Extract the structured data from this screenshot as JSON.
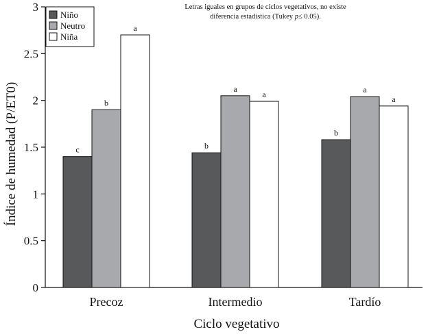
{
  "chart_data": {
    "type": "bar",
    "title": "",
    "xlabel": "Ciclo vegetativo",
    "ylabel": "Índice de humedad (P/ET0)",
    "ylim": [
      0,
      3
    ],
    "yticks": [
      0,
      0.5,
      1,
      1.5,
      2,
      2.5,
      3
    ],
    "ytick_labels": [
      "0",
      "0.5",
      "1",
      "1.5",
      "2",
      "2.5",
      "3"
    ],
    "categories": [
      "Precoz",
      "Intermedio",
      "Tardío"
    ],
    "series": [
      {
        "name": "Niño",
        "color": "#58595b",
        "values": [
          1.4,
          1.44,
          1.58
        ],
        "letters": [
          "c",
          "b",
          "b"
        ]
      },
      {
        "name": "Neutro",
        "color": "#a7a9ac",
        "values": [
          1.9,
          2.05,
          2.04
        ],
        "letters": [
          "b",
          "a",
          "a"
        ]
      },
      {
        "name": "Niña",
        "color": "#ffffff",
        "values": [
          2.7,
          1.99,
          1.94
        ],
        "letters": [
          "a",
          "a",
          "a"
        ]
      }
    ],
    "legend": "top-left",
    "grid": false,
    "annotation": {
      "line1": "Letras iguales en grupos de ciclos vegetativos, no existe",
      "line2_pre": "diferencia estadística (Tukey ",
      "line2_italic": "p",
      "line2_post": "≤ 0.05)."
    }
  }
}
